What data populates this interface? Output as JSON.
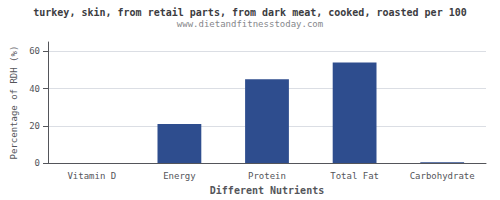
{
  "chart_data": {
    "type": "bar",
    "title": "turkey, skin, from retail parts, from dark meat, cooked, roasted per 100",
    "subtitle": "www.dietandfitnesstoday.com",
    "xlabel": "Different Nutrients",
    "ylabel": "Percentage of RDH (%)",
    "categories": [
      "Vitamin D",
      "Energy",
      "Protein",
      "Total Fat",
      "Carbohydrate"
    ],
    "values": [
      0,
      21,
      45,
      54,
      0.5
    ],
    "color": "#2e4d8e",
    "ylim": [
      0,
      65
    ],
    "yticks": [
      0,
      20,
      40,
      60
    ],
    "grid": true
  }
}
